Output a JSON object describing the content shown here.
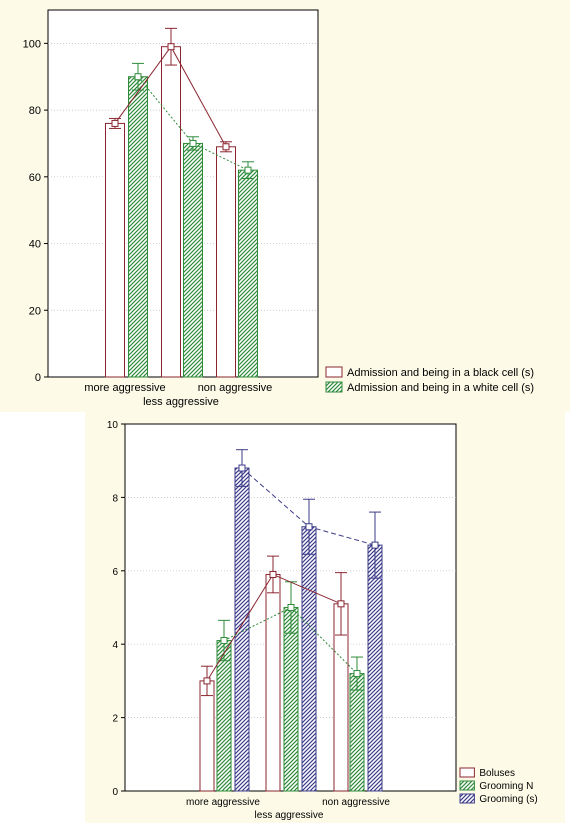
{
  "colors": {
    "black_cell": "#8b2630",
    "white_cell": "#2e8b3a",
    "boluses": "#8b2630",
    "grooming_n": "#2e8b3a",
    "grooming_s": "#3d3c8a",
    "background": "#fdfbe8"
  },
  "chart_data": [
    {
      "type": "bar",
      "title": "",
      "xlabel": "",
      "ylabel": "",
      "ylim": [
        0,
        110
      ],
      "yticks": [
        "0",
        "20",
        "40",
        "60",
        "80",
        "100"
      ],
      "grid": true,
      "legend_position": "right-bottom",
      "categories": [
        "more aggressive",
        "less aggressive",
        "non aggressive"
      ],
      "series": [
        {
          "name": "Admission and being in a black cell (s)",
          "values": [
            76,
            99,
            69
          ],
          "errors": [
            1.5,
            5.5,
            1.5
          ]
        },
        {
          "name": "Admission and being in a white cell (s)",
          "values": [
            90,
            70,
            62
          ],
          "errors": [
            4,
            2,
            2.5
          ]
        }
      ]
    },
    {
      "type": "bar",
      "title": "",
      "xlabel": "",
      "ylabel": "",
      "ylim": [
        0,
        10
      ],
      "yticks": [
        "0",
        "2",
        "4",
        "6",
        "8",
        "10"
      ],
      "grid": true,
      "legend_position": "right-bottom",
      "categories": [
        "more aggressive",
        "less aggressive",
        "non aggressive"
      ],
      "series": [
        {
          "name": "Boluses",
          "values": [
            3.0,
            5.9,
            5.1
          ],
          "errors": [
            0.4,
            0.5,
            0.85
          ]
        },
        {
          "name": "Grooming N",
          "values": [
            4.1,
            5.0,
            3.2
          ],
          "errors": [
            0.55,
            0.7,
            0.45
          ]
        },
        {
          "name": "Grooming (s)",
          "values": [
            8.8,
            7.2,
            6.7
          ],
          "errors": [
            0.5,
            0.75,
            0.9
          ]
        }
      ]
    }
  ]
}
